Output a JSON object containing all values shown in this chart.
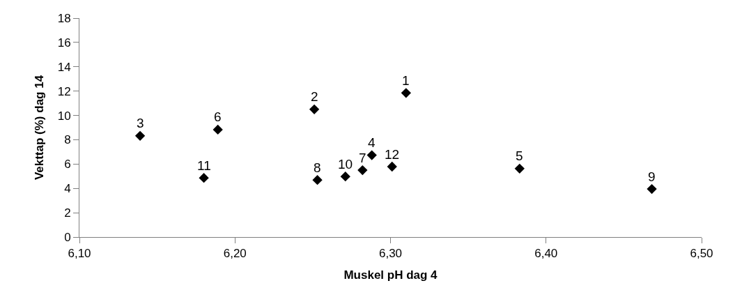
{
  "chart_data": {
    "type": "scatter",
    "xlabel": "Muskel pH dag 4",
    "ylabel": "Vekttap (%) dag 14",
    "x": [
      6.31,
      6.251,
      6.139,
      6.288,
      6.383,
      6.189,
      6.282,
      6.253,
      6.468,
      6.271,
      6.18,
      6.301
    ],
    "series": [
      {
        "color": "#000000",
        "values": [
          11.85,
          10.5,
          8.32,
          6.73,
          5.63,
          8.83,
          5.5,
          4.69,
          3.95,
          4.98,
          4.86,
          5.79
        ]
      }
    ],
    "annotations": [
      {
        "text": "1",
        "x": 6.31,
        "y": 11.85
      },
      {
        "text": "2",
        "x": 6.251,
        "y": 10.5
      },
      {
        "text": "3",
        "x": 6.139,
        "y": 8.32
      },
      {
        "text": "4",
        "x": 6.288,
        "y": 6.73
      },
      {
        "text": "5",
        "x": 6.383,
        "y": 5.63
      },
      {
        "text": "6",
        "x": 6.189,
        "y": 8.83
      },
      {
        "text": "7",
        "x": 6.282,
        "y": 5.5
      },
      {
        "text": "8",
        "x": 6.253,
        "y": 4.69
      },
      {
        "text": "9",
        "x": 6.468,
        "y": 3.95
      },
      {
        "text": "10",
        "x": 6.271,
        "y": 4.98
      },
      {
        "text": "11",
        "x": 6.18,
        "y": 4.86
      },
      {
        "text": "12",
        "x": 6.301,
        "y": 5.79
      }
    ],
    "xlim": [
      6.1,
      6.5
    ],
    "xticks": [
      {
        "value": 6.1,
        "label": "6,10"
      },
      {
        "value": 6.2,
        "label": "6,20"
      },
      {
        "value": 6.3,
        "label": "6,30"
      },
      {
        "value": 6.4,
        "label": "6,40"
      },
      {
        "value": 6.5,
        "label": "6,50"
      }
    ],
    "ylim": [
      0,
      18
    ],
    "yticks": [
      0,
      2,
      4,
      6,
      8,
      10,
      12,
      14,
      16,
      18
    ],
    "marker": "diamond"
  }
}
